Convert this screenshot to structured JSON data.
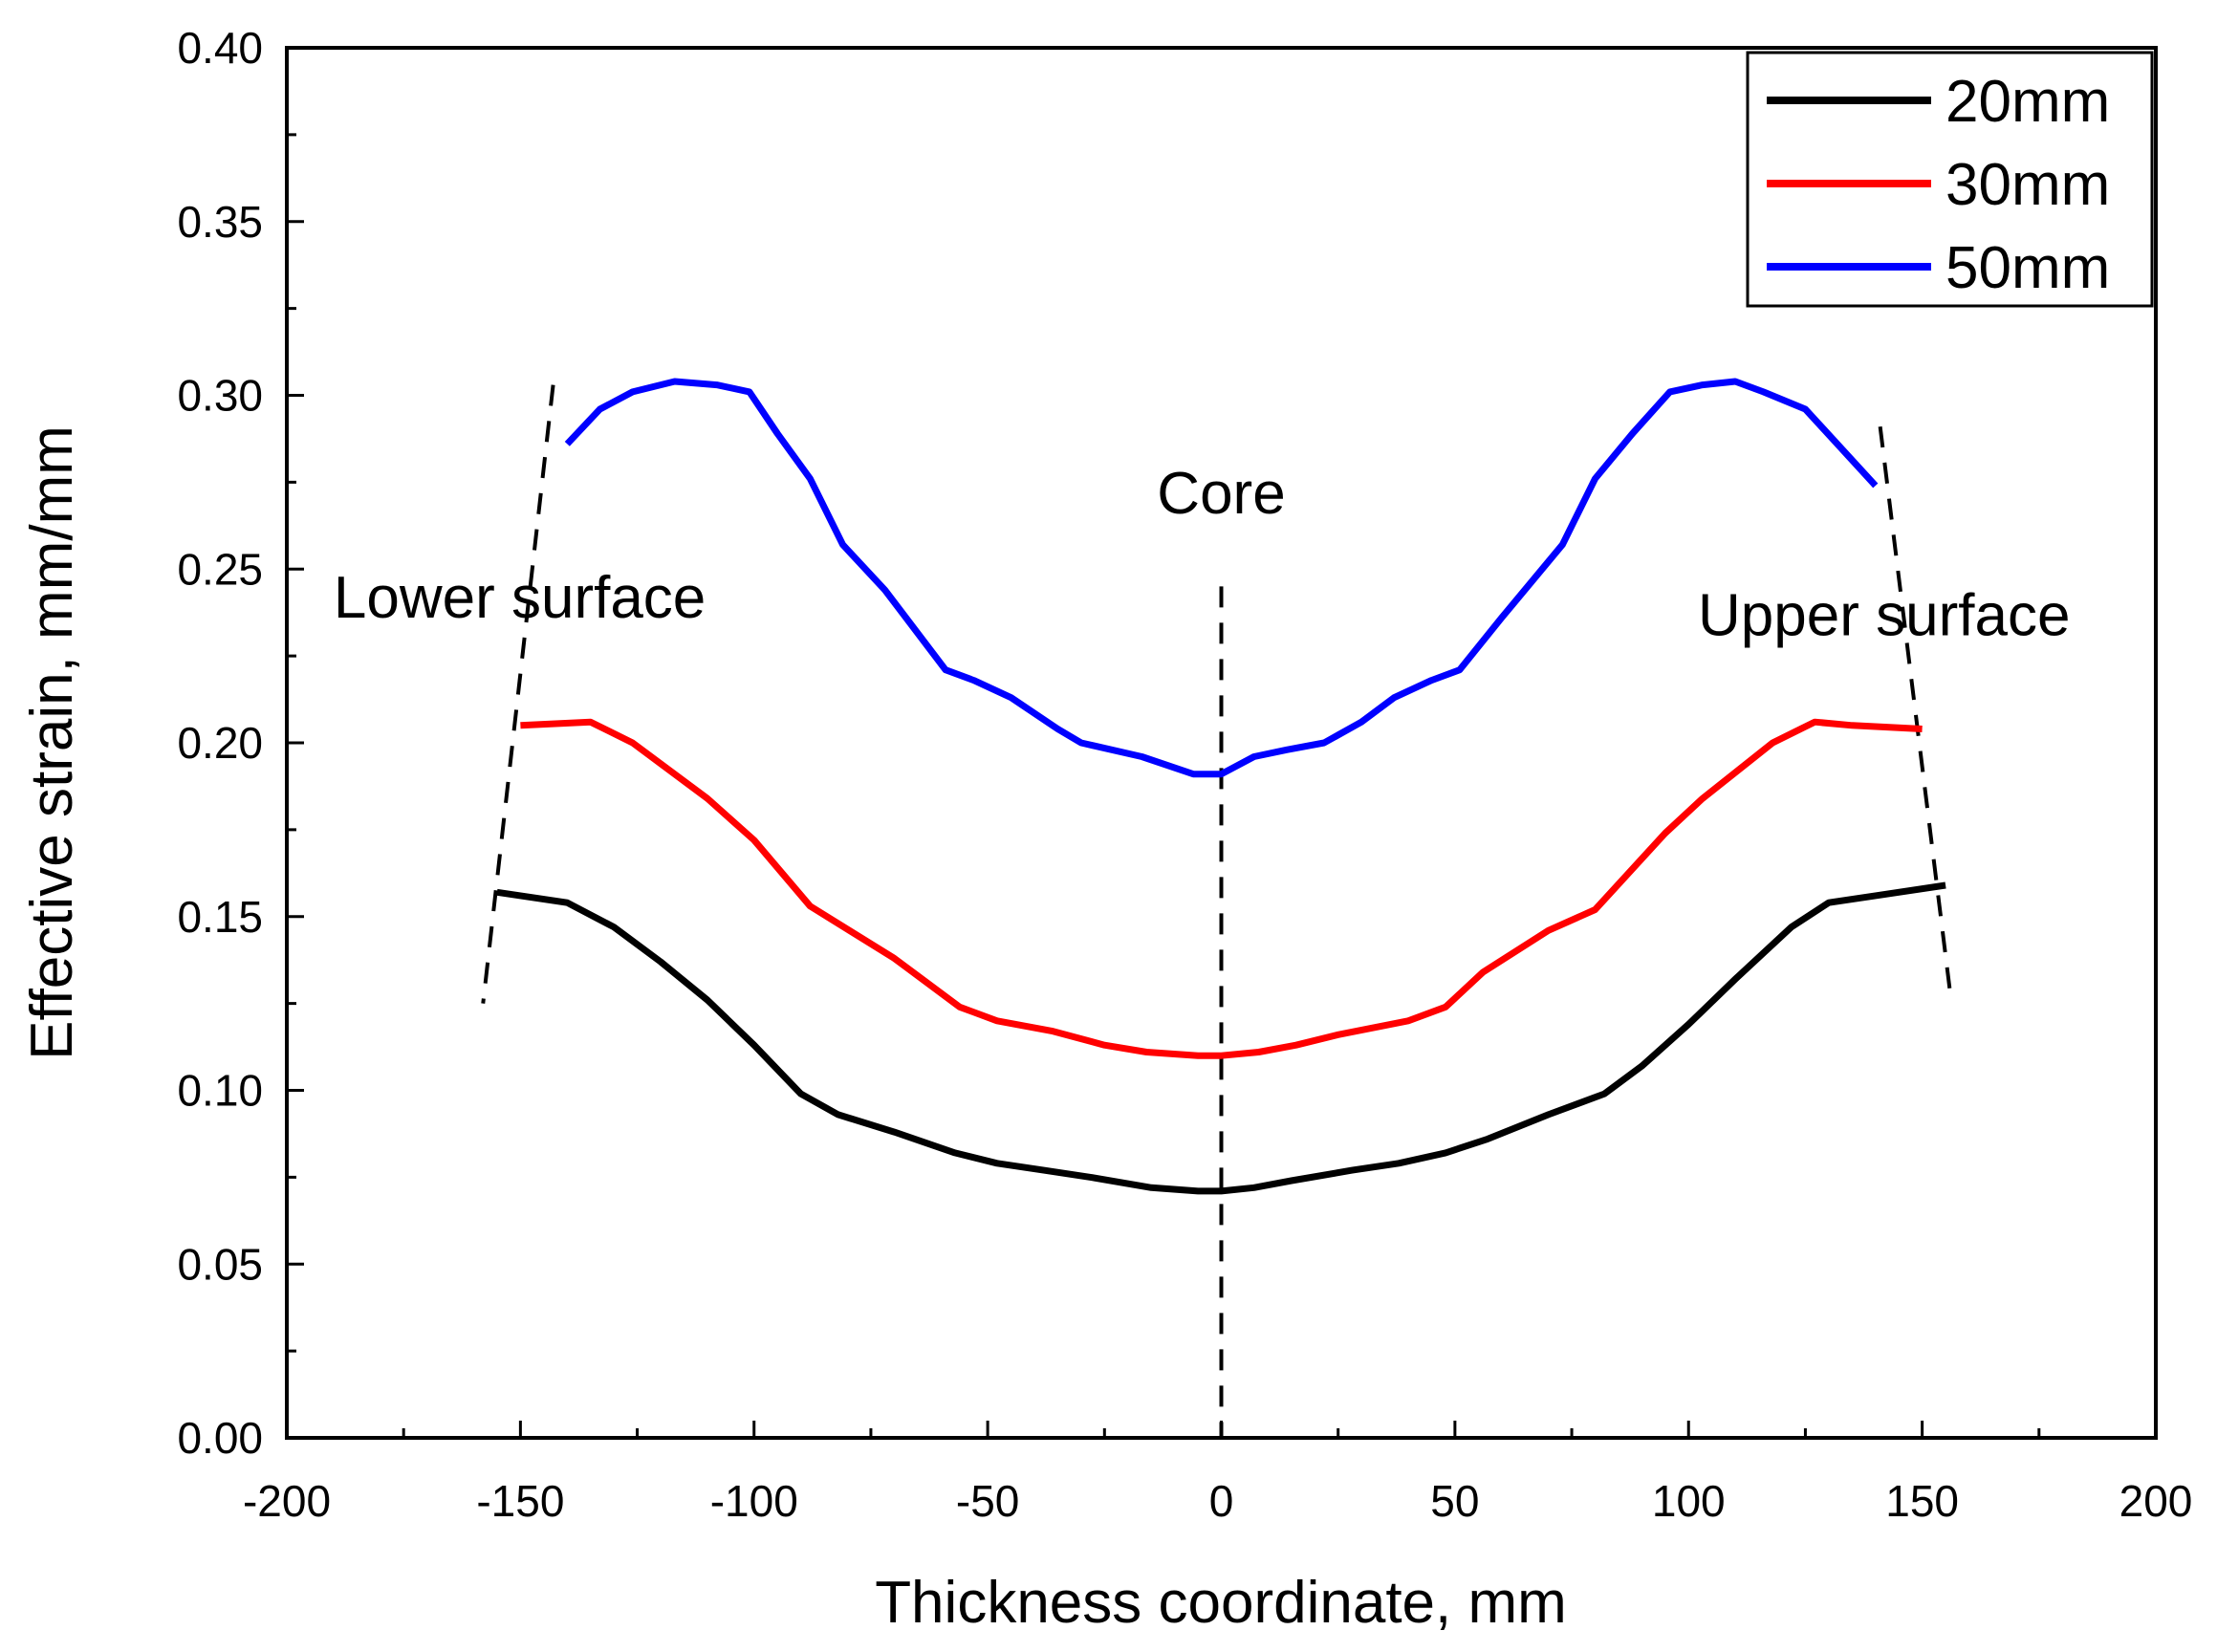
{
  "chart_data": {
    "type": "line",
    "title": "",
    "xlabel": "Thickness coordinate, mm",
    "ylabel": "Effective strain, mm/mm",
    "xlim": [
      -200,
      200
    ],
    "ylim": [
      0.0,
      0.4
    ],
    "x_ticks": [
      -200,
      -150,
      -100,
      -50,
      0,
      50,
      100,
      150,
      200
    ],
    "x_tick_labels": [
      "-200",
      "-150",
      "-100",
      "-50",
      "0",
      "50",
      "100",
      "150",
      "200"
    ],
    "y_ticks": [
      0.0,
      0.05,
      0.1,
      0.15,
      0.2,
      0.25,
      0.3,
      0.35,
      0.4
    ],
    "y_tick_labels": [
      "0.00",
      "0.05",
      "0.10",
      "0.15",
      "0.20",
      "0.25",
      "0.30",
      "0.35",
      "0.40"
    ],
    "grid": false,
    "legend_position": "top-right",
    "series": [
      {
        "name": "20mm",
        "color": "#000000",
        "x": [
          -155,
          -140,
          -130,
          -120,
          -110,
          -100,
          -90,
          -82,
          -70,
          -57,
          -48,
          -38,
          -28,
          -15,
          -5,
          0,
          7,
          15,
          28,
          38,
          48,
          57,
          70,
          82,
          90,
          100,
          110,
          122,
          130,
          140,
          155
        ],
        "y": [
          0.157,
          0.154,
          0.147,
          0.137,
          0.126,
          0.113,
          0.099,
          0.093,
          0.088,
          0.082,
          0.079,
          0.077,
          0.075,
          0.072,
          0.071,
          0.071,
          0.072,
          0.074,
          0.077,
          0.079,
          0.082,
          0.086,
          0.093,
          0.099,
          0.107,
          0.119,
          0.132,
          0.147,
          0.154,
          0.156,
          0.159
        ]
      },
      {
        "name": "30mm",
        "color": "#ff0000",
        "x": [
          -150,
          -135,
          -126,
          -110,
          -100,
          -88,
          -70,
          -56,
          -48,
          -36,
          -25,
          -16,
          -5,
          0,
          8,
          16,
          25,
          40,
          48,
          56,
          70,
          80,
          95,
          103,
          118,
          127,
          135,
          150
        ],
        "y": [
          0.205,
          0.206,
          0.2,
          0.184,
          0.172,
          0.153,
          0.138,
          0.124,
          0.12,
          0.117,
          0.113,
          0.111,
          0.11,
          0.11,
          0.111,
          0.113,
          0.116,
          0.12,
          0.124,
          0.134,
          0.146,
          0.152,
          0.174,
          0.184,
          0.2,
          0.206,
          0.205,
          0.204
        ]
      },
      {
        "name": "50mm",
        "color": "#0000ff",
        "x": [
          -140,
          -133,
          -126,
          -117,
          -108,
          -101,
          -95,
          -88,
          -81,
          -72,
          -59,
          -53,
          -45,
          -35,
          -30,
          -17,
          -6,
          0,
          7,
          14,
          22,
          30,
          37,
          45,
          51,
          60,
          73,
          80,
          88,
          96,
          103,
          110,
          116,
          125,
          140
        ],
        "y": [
          0.286,
          0.296,
          0.301,
          0.304,
          0.303,
          0.301,
          0.289,
          0.276,
          0.257,
          0.244,
          0.221,
          0.218,
          0.213,
          0.204,
          0.2,
          0.196,
          0.191,
          0.191,
          0.196,
          0.198,
          0.2,
          0.206,
          0.213,
          0.218,
          0.221,
          0.236,
          0.257,
          0.276,
          0.289,
          0.301,
          0.303,
          0.304,
          0.301,
          0.296,
          0.274
        ]
      }
    ],
    "annotations": [
      {
        "id": "core",
        "text": "Core",
        "x": 0,
        "y": 0.266
      },
      {
        "id": "lower",
        "text": "Lower surface",
        "x": -190,
        "y": 0.236
      },
      {
        "id": "upper",
        "text": "Upper surface",
        "x": 102,
        "y": 0.231
      }
    ],
    "reference_lines": [
      {
        "id": "core-line",
        "x1": 0,
        "y1": 0.245,
        "x2": 0,
        "y2": 0.0
      },
      {
        "id": "lower-surface-line",
        "x1": -143,
        "y1": 0.303,
        "x2": -158,
        "y2": 0.125
      },
      {
        "id": "upper-surface-line",
        "x1": 141,
        "y1": 0.291,
        "x2": 156,
        "y2": 0.128
      }
    ]
  }
}
